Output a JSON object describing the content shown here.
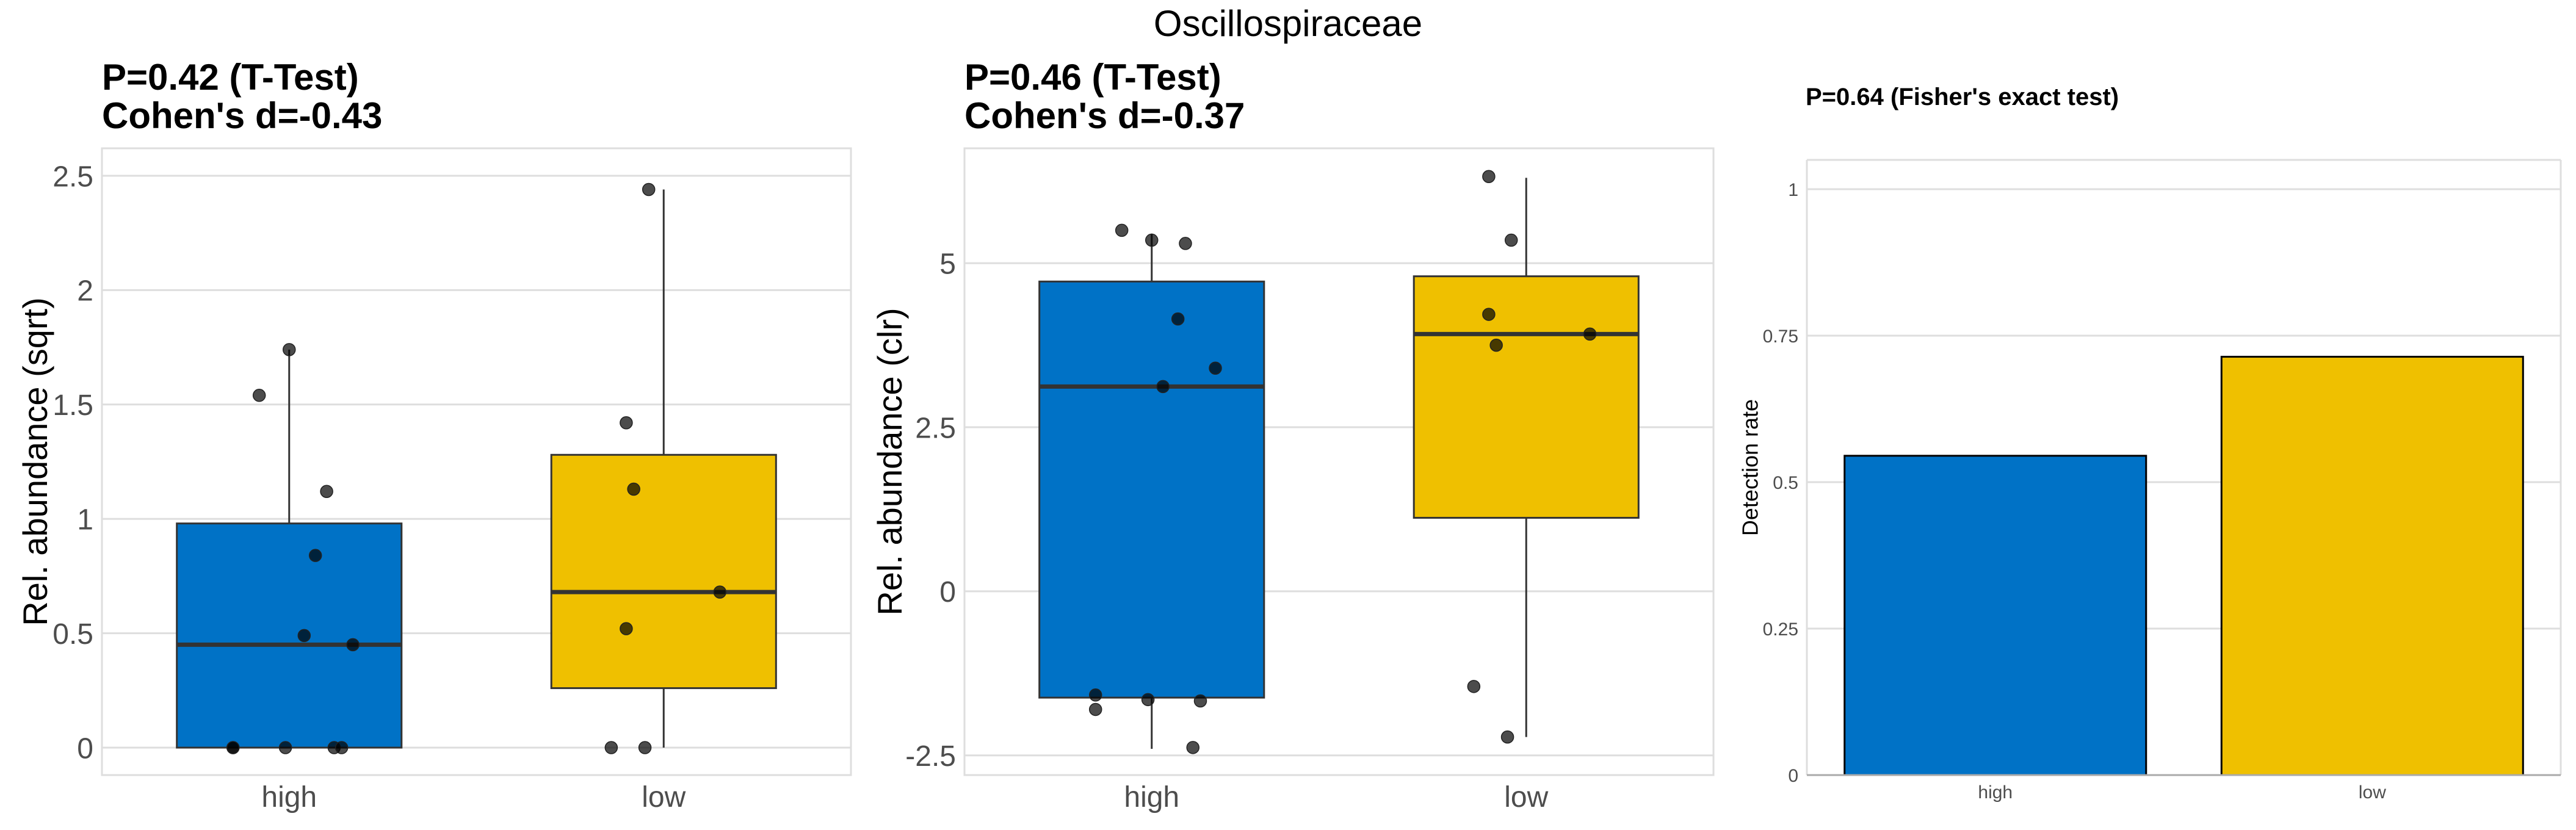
{
  "main_title": "Oscillospiraceae",
  "colors": {
    "high": "#0072C6",
    "low": "#EFC000",
    "point": "#333333",
    "grid": "#dedede",
    "outline": "#333333"
  },
  "chart_data": [
    {
      "type": "box",
      "title_lines": [
        "P=0.42 (T-Test)",
        "Cohen's d=-0.43"
      ],
      "xlabel": "",
      "ylabel": "Rel. abundance (sqrt)",
      "categories": [
        "high",
        "low"
      ],
      "yticks": [
        0,
        0.5,
        1,
        1.5,
        2,
        2.5
      ],
      "ytick_labels": [
        "0",
        "0.5",
        "1",
        "1.5",
        "2",
        "2.5"
      ],
      "ylim": [
        -0.12,
        2.62
      ],
      "grid": true,
      "boxes": [
        {
          "group": "high",
          "whisker_low": 0,
          "q1": 0,
          "median": 0.45,
          "q3": 0.98,
          "whisker_high": 1.74,
          "points": [
            1.74,
            1.54,
            1.12,
            0.84,
            0.49,
            0.45,
            0,
            0,
            0,
            0,
            0
          ],
          "jitter": [
            0.0,
            -0.08,
            0.1,
            0.07,
            0.04,
            0.17,
            -0.15,
            -0.01,
            0.12,
            0.14,
            -0.15
          ]
        },
        {
          "group": "low",
          "whisker_low": 0,
          "q1": 0.26,
          "median": 0.68,
          "q3": 1.28,
          "whisker_high": 2.44,
          "points": [
            2.44,
            1.42,
            1.13,
            0.68,
            0.52,
            0,
            0
          ],
          "jitter": [
            -0.04,
            -0.1,
            -0.08,
            0.15,
            -0.1,
            -0.14,
            -0.05
          ]
        }
      ]
    },
    {
      "type": "box",
      "title_lines": [
        "P=0.46 (T-Test)",
        "Cohen's d=-0.37"
      ],
      "xlabel": "",
      "ylabel": "Rel. abundance (clr)",
      "categories": [
        "high",
        "low"
      ],
      "yticks": [
        -2.5,
        0,
        2.5,
        5
      ],
      "ytick_labels": [
        "-2.5",
        "0",
        "2.5",
        "5"
      ],
      "ylim": [
        -2.8,
        6.75
      ],
      "grid": true,
      "boxes": [
        {
          "group": "high",
          "whisker_low": -2.4,
          "q1": -1.62,
          "median": 3.12,
          "q3": 4.72,
          "whisker_high": 5.45,
          "points": [
            5.5,
            5.35,
            5.3,
            4.15,
            3.4,
            3.12,
            -1.58,
            -1.8,
            -1.65,
            -1.67,
            -2.38
          ],
          "jitter": [
            -0.08,
            0.0,
            0.09,
            0.07,
            0.17,
            0.03,
            -0.15,
            -0.15,
            -0.01,
            0.13,
            0.11
          ]
        },
        {
          "group": "low",
          "whisker_low": -2.22,
          "q1": 1.12,
          "median": 3.92,
          "q3": 4.8,
          "whisker_high": 6.3,
          "points": [
            6.32,
            5.35,
            4.22,
            3.75,
            3.92,
            -1.45,
            -2.22
          ],
          "jitter": [
            -0.1,
            -0.04,
            -0.1,
            -0.08,
            0.17,
            -0.14,
            -0.05
          ]
        }
      ]
    },
    {
      "type": "bar",
      "title": "P=0.64 (Fisher's exact test)",
      "xlabel": "",
      "ylabel": "Detection rate",
      "categories": [
        "high",
        "low"
      ],
      "values": [
        0.545,
        0.714
      ],
      "yticks": [
        0,
        0.25,
        0.5,
        0.75,
        1
      ],
      "ytick_labels": [
        "0",
        "0.25",
        "0.5",
        "0.75",
        "1"
      ],
      "ylim": [
        0,
        1.05
      ],
      "grid": true
    }
  ]
}
